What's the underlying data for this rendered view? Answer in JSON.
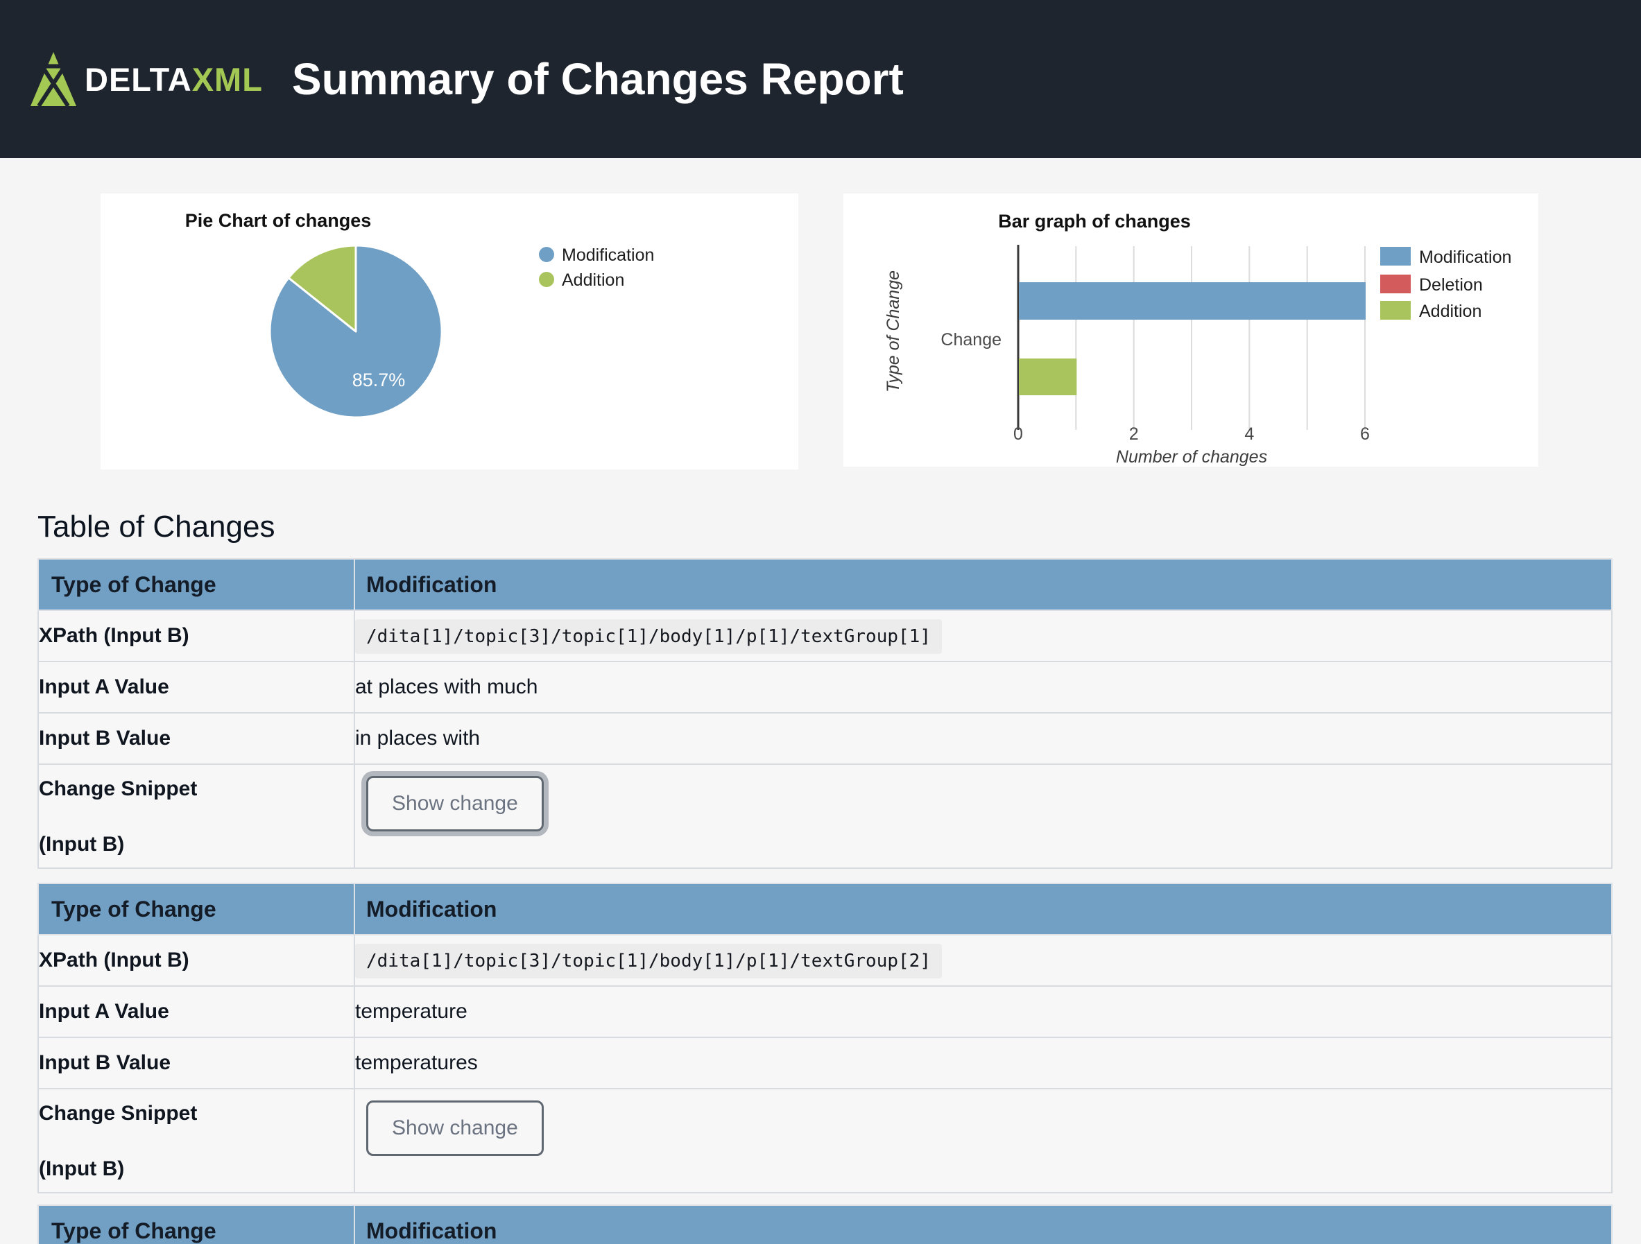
{
  "header": {
    "logo_text_delta": "DELTA",
    "logo_text_xml": "XML",
    "title": "Summary of Changes Report"
  },
  "colors": {
    "header_bg": "#1f252e",
    "logo_green": "#a3c853",
    "chart_blue": "#6f9fc5",
    "chart_green": "#a9c45c",
    "chart_red": "#d45b5b",
    "table_header_bg": "#72a0c4",
    "page_bg": "#f5f5f6",
    "card_bg": "#ffffff"
  },
  "chart_data": [
    {
      "type": "pie",
      "title": "Pie Chart of changes",
      "slices": [
        {
          "label": "Modification",
          "value": 6,
          "percent_label": "85.7%",
          "color": "#6f9fc5"
        },
        {
          "label": "Addition",
          "value": 1,
          "percent_label": "14.3%",
          "color": "#a9c45c"
        }
      ],
      "shown_percent_label": "85.7%",
      "legend_position": "right"
    },
    {
      "type": "bar",
      "orientation": "horizontal",
      "title": "Bar graph of changes",
      "categories": [
        "Change"
      ],
      "series": [
        {
          "name": "Modification",
          "values": [
            6
          ],
          "color": "#6f9fc5"
        },
        {
          "name": "Deletion",
          "values": [
            0
          ],
          "color": "#d45b5b"
        },
        {
          "name": "Addition",
          "values": [
            1
          ],
          "color": "#a9c45c"
        }
      ],
      "xlabel": "Number of changes",
      "ylabel": "Type of Change",
      "xlim": [
        0,
        6
      ],
      "xticks": [
        0,
        2,
        4,
        6
      ],
      "grid": true,
      "legend_position": "right"
    }
  ],
  "section": {
    "heading": "Table of Changes"
  },
  "tables": [
    {
      "type_label": "Type of Change",
      "type_value": "Modification",
      "rows": {
        "xpath": {
          "label": "XPath (Input B)",
          "value": "/dita[1]/topic[3]/topic[1]/body[1]/p[1]/textGroup[1]"
        },
        "input_a": {
          "label": "Input A Value",
          "value": "at places with much"
        },
        "input_b": {
          "label": "Input B Value",
          "value": "in places with"
        },
        "snippet": {
          "label_line1": "Change Snippet",
          "label_line2": "(Input B)",
          "button_label": "Show change"
        }
      }
    },
    {
      "type_label": "Type of Change",
      "type_value": "Modification",
      "rows": {
        "xpath": {
          "label": "XPath (Input B)",
          "value": "/dita[1]/topic[3]/topic[1]/body[1]/p[1]/textGroup[2]"
        },
        "input_a": {
          "label": "Input A Value",
          "value": "temperature"
        },
        "input_b": {
          "label": "Input B Value",
          "value": "temperatures"
        },
        "snippet": {
          "label_line1": "Change Snippet",
          "label_line2": "(Input B)",
          "button_label": "Show change"
        }
      }
    },
    {
      "type_label": "Type of Change",
      "type_value": "Modification"
    }
  ]
}
